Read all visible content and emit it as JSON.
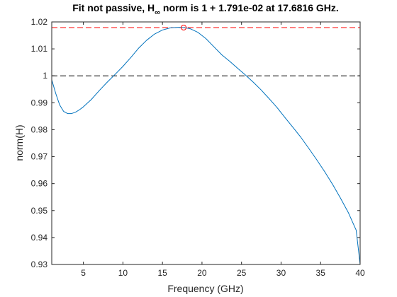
{
  "chart_data": {
    "type": "line",
    "title": {
      "prefix": "Fit not passive, H",
      "subscript": "∞",
      "suffix": " norm is 1 + 1.791e-02 at 17.6816 GHz."
    },
    "xlabel": "Frequency (GHz)",
    "ylabel": "norm(H)",
    "xlim": [
      1,
      40
    ],
    "ylim": [
      0.93,
      1.02
    ],
    "x_ticks": [
      5,
      10,
      15,
      20,
      25,
      30,
      35,
      40
    ],
    "x_tick_labels": [
      "5",
      "10",
      "15",
      "20",
      "25",
      "30",
      "35",
      "40"
    ],
    "y_ticks": [
      0.93,
      0.94,
      0.95,
      0.96,
      0.97,
      0.98,
      0.99,
      1.0,
      1.01,
      1.02
    ],
    "y_tick_labels": [
      "0.93",
      "0.94",
      "0.95",
      "0.96",
      "0.97",
      "0.98",
      "0.99",
      "1",
      "1.01",
      "1.02"
    ],
    "grid": false,
    "series": [
      {
        "color": "#0072bd",
        "x": [
          1,
          1.5,
          2,
          2.5,
          3,
          3.5,
          4,
          4.5,
          5,
          6,
          7,
          8,
          9,
          10,
          11,
          12,
          13,
          14,
          15,
          16,
          17,
          17.68,
          18.5,
          19.5,
          20.5,
          21.5,
          22.5,
          23.5,
          24.5,
          25.5,
          26.5,
          27.5,
          28.5,
          29.5,
          30.5,
          31.5,
          32.5,
          33.5,
          34.5,
          35.5,
          36.5,
          37.5,
          38.5,
          39.5,
          40
        ],
        "y": [
          0.9985,
          0.9935,
          0.9892,
          0.9868,
          0.986,
          0.986,
          0.9865,
          0.9874,
          0.9885,
          0.9912,
          0.9945,
          0.9976,
          1.0005,
          1.0035,
          1.0068,
          1.0103,
          1.0132,
          1.0155,
          1.017,
          1.0178,
          1.018,
          1.0179,
          1.0175,
          1.0161,
          1.0138,
          1.0108,
          1.0078,
          1.0054,
          1.0028,
          1.0003,
          0.9976,
          0.9947,
          0.9915,
          0.9882,
          0.9845,
          0.9809,
          0.9772,
          0.9731,
          0.9689,
          0.9645,
          0.9598,
          0.9547,
          0.9493,
          0.9427,
          0.93
        ]
      }
    ],
    "reference_lines": [
      {
        "y": 1.0179,
        "style": "dashed",
        "color": "#ff0000"
      },
      {
        "y": 1.0,
        "style": "dashed",
        "color": "#000000"
      }
    ],
    "markers": [
      {
        "x": 17.6816,
        "y": 1.0179,
        "shape": "circle",
        "color": "#ff0000"
      }
    ]
  }
}
